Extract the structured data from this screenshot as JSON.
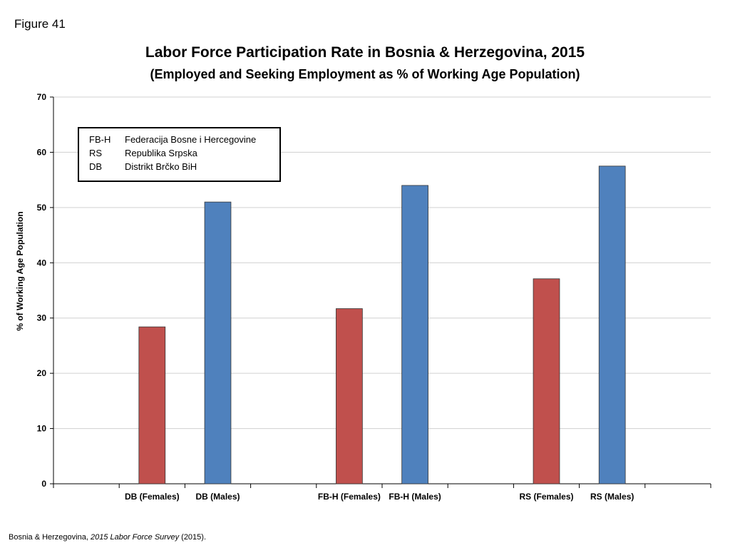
{
  "figure_label": "Figure 41",
  "source": {
    "prefix": "Bosnia & Herzegovina, ",
    "title": "2015 Labor Force Survey",
    "suffix": " (2015)."
  },
  "legend": {
    "entries": [
      {
        "abbr": "FB-H",
        "name": "Federacija Bosne i Hercegovine"
      },
      {
        "abbr": "RS",
        "name": "Republika Srpska"
      },
      {
        "abbr": "DB",
        "name": "Distrikt Brčko BiH"
      }
    ]
  },
  "chart_data": {
    "type": "bar",
    "title": "Labor Force Participation Rate in Bosnia & Herzegovina, 2015",
    "subtitle": "(Employed and Seeking Employment as % of Working Age Population)",
    "xlabel": "",
    "ylabel": "% of Working Age Population",
    "ylim": [
      0,
      70
    ],
    "yticks": [
      0,
      10,
      20,
      30,
      40,
      50,
      60,
      70
    ],
    "grid": true,
    "categories": [
      "",
      "DB (Females)",
      "DB (Males)",
      "",
      "FB-H (Females)",
      "FB-H (Males)",
      "",
      "RS (Females)",
      "RS (Males)",
      ""
    ],
    "values": [
      null,
      28.4,
      51.0,
      null,
      31.7,
      54.0,
      null,
      37.1,
      57.5,
      null
    ],
    "bar_colors": {
      "female": "#c0504d",
      "male": "#4f81bd"
    }
  }
}
